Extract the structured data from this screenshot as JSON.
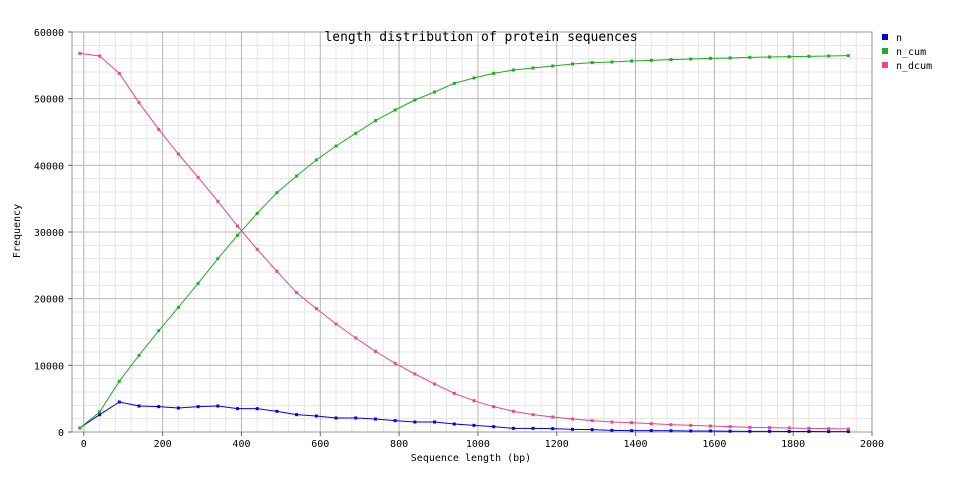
{
  "chart_data": {
    "type": "line",
    "title": "length distribution of protein sequences",
    "xlabel": "Sequence length (bp)",
    "ylabel": "Frequency",
    "xlim": [
      -30,
      2000
    ],
    "ylim": [
      0,
      60000
    ],
    "x_ticks": [
      0,
      200,
      400,
      600,
      800,
      1000,
      1200,
      1400,
      1600,
      1800,
      2000
    ],
    "y_ticks": [
      0,
      10000,
      20000,
      30000,
      40000,
      50000,
      60000
    ],
    "grid": true,
    "legend_position": "right",
    "x": [
      -10,
      40,
      90,
      140,
      190,
      240,
      290,
      340,
      390,
      440,
      490,
      540,
      590,
      640,
      690,
      740,
      790,
      840,
      890,
      940,
      990,
      1040,
      1090,
      1140,
      1190,
      1240,
      1290,
      1340,
      1390,
      1440,
      1490,
      1540,
      1590,
      1640,
      1690,
      1740,
      1790,
      1840,
      1890,
      1940
    ],
    "series": [
      {
        "name": "n",
        "color": "#0000ee",
        "values": [
          600,
          2600,
          4500,
          3900,
          3800,
          3600,
          3800,
          3900,
          3500,
          3500,
          3100,
          2600,
          2400,
          2100,
          2100,
          1950,
          1700,
          1500,
          1500,
          1200,
          1000,
          800,
          550,
          550,
          500,
          400,
          350,
          250,
          200,
          200,
          180,
          150,
          150,
          120,
          100,
          100,
          80,
          80,
          60,
          60
        ]
      },
      {
        "name": "n_cum",
        "color": "#22aa22",
        "values": [
          600,
          3000,
          7600,
          11500,
          15200,
          18700,
          22300,
          26000,
          29500,
          32800,
          35900,
          38400,
          40800,
          42900,
          44800,
          46700,
          48300,
          49800,
          51000,
          52300,
          53100,
          53800,
          54300,
          54600,
          54900,
          55200,
          55400,
          55500,
          55650,
          55750,
          55850,
          55950,
          56050,
          56100,
          56200,
          56250,
          56300,
          56350,
          56400,
          56450
        ]
      },
      {
        "name": "n_dcum",
        "color": "#ee4488",
        "values": [
          56800,
          56400,
          53800,
          49400,
          45400,
          41700,
          38200,
          34600,
          30900,
          27400,
          24100,
          20900,
          18500,
          16200,
          14100,
          12100,
          10300,
          8700,
          7200,
          5800,
          4700,
          3800,
          3100,
          2600,
          2250,
          1950,
          1700,
          1500,
          1400,
          1250,
          1100,
          1000,
          900,
          800,
          700,
          650,
          600,
          550,
          500,
          450
        ]
      }
    ]
  }
}
